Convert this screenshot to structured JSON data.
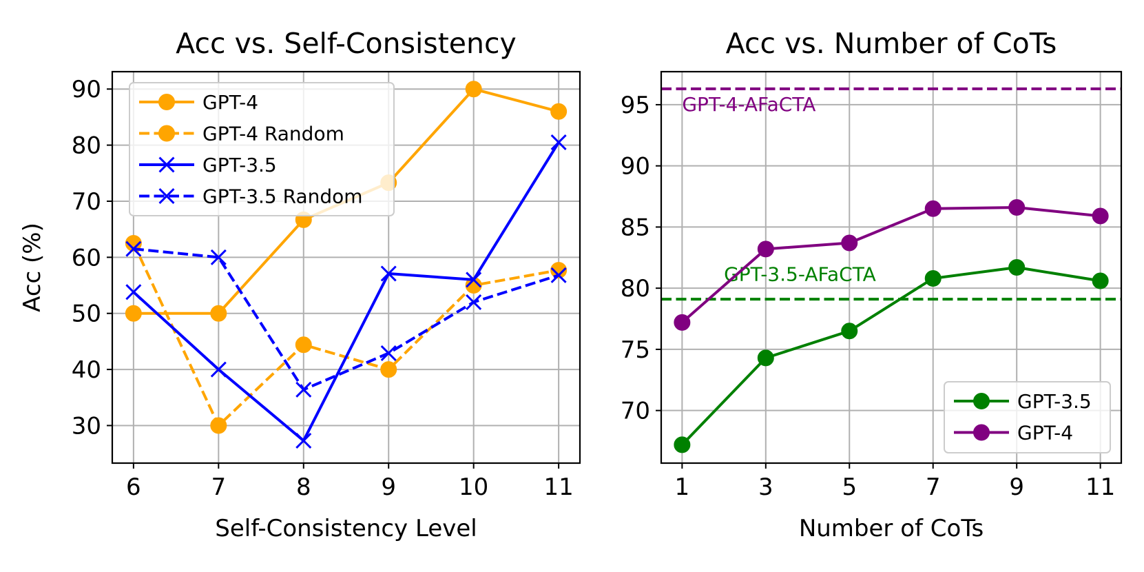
{
  "chart_data": [
    {
      "type": "line",
      "title": "Acc vs. Self-Consistency",
      "xlabel": "Self-Consistency Level",
      "ylabel": "Acc (%)",
      "x": [
        6,
        7,
        8,
        9,
        10,
        11
      ],
      "xticks": [
        "6",
        "7",
        "8",
        "9",
        "10",
        "11"
      ],
      "yticks": [
        30,
        40,
        50,
        60,
        70,
        80,
        90
      ],
      "xlim": [
        5.75,
        11.25
      ],
      "ylim": [
        23.3,
        93.1
      ],
      "grid": true,
      "legend_position": "top-left",
      "series": [
        {
          "name": "GPT-4",
          "color": "#ffa500",
          "linestyle": "solid",
          "marker": "circle",
          "values": [
            50.0,
            50.0,
            66.7,
            73.3,
            90.0,
            86.0
          ]
        },
        {
          "name": "GPT-4 Random",
          "color": "#ffa500",
          "linestyle": "dashed",
          "marker": "circle",
          "values": [
            62.5,
            30.0,
            44.4,
            40.0,
            55.0,
            57.7
          ]
        },
        {
          "name": "GPT-3.5",
          "color": "#0000ff",
          "linestyle": "solid",
          "marker": "x",
          "values": [
            53.8,
            40.0,
            27.3,
            57.1,
            56.0,
            80.5
          ]
        },
        {
          "name": "GPT-3.5 Random",
          "color": "#0000ff",
          "linestyle": "dashed",
          "marker": "x",
          "values": [
            61.5,
            60.0,
            36.4,
            42.9,
            52.0,
            56.8
          ]
        }
      ]
    },
    {
      "type": "line",
      "title": "Acc vs. Number of CoTs",
      "xlabel": "Number of CoTs",
      "ylabel": "",
      "x": [
        1,
        3,
        5,
        7,
        9,
        11
      ],
      "xticks": [
        "1",
        "3",
        "5",
        "7",
        "9",
        "11"
      ],
      "yticks": [
        70,
        75,
        80,
        85,
        90,
        95
      ],
      "xlim": [
        0.5,
        11.5
      ],
      "ylim": [
        65.7,
        97.7
      ],
      "grid": true,
      "legend_position": "lower-right",
      "series": [
        {
          "name": "GPT-3.5",
          "color": "#008000",
          "linestyle": "solid",
          "marker": "circle",
          "values": [
            67.2,
            74.3,
            76.5,
            80.8,
            81.7,
            80.6
          ]
        },
        {
          "name": "GPT-4",
          "color": "#800080",
          "linestyle": "solid",
          "marker": "circle",
          "values": [
            77.2,
            83.2,
            83.7,
            86.5,
            86.6,
            85.9
          ]
        }
      ],
      "reference_lines": [
        {
          "label": "GPT-4-AFaCTA",
          "value": 96.3,
          "color": "#800080",
          "linestyle": "dashed",
          "label_x": 1.0,
          "label_y": 94.5
        },
        {
          "label": "GPT-3.5-AFaCTA",
          "value": 79.1,
          "color": "#008000",
          "linestyle": "dashed",
          "label_x": 2.0,
          "label_y": 80.6
        }
      ]
    }
  ]
}
